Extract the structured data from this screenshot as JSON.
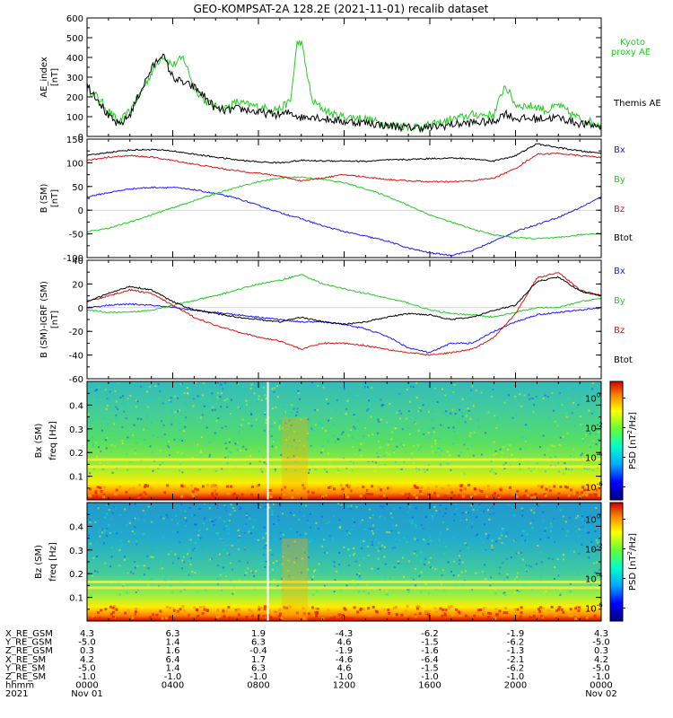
{
  "title": "GEO-KOMPSAT-2A 128.2E (2021-11-01) recalib dataset",
  "chart_data": [
    {
      "type": "line",
      "ylabel": "AE_index [nT]",
      "ylim": [
        0,
        600
      ],
      "yticks": [
        0,
        100,
        200,
        300,
        400,
        500,
        600
      ],
      "series": [
        {
          "name": "Kyoto proxy AE",
          "color": "#22cc22",
          "x": [
            0,
            0.5,
            1,
            1.5,
            2,
            2.5,
            3,
            3.5,
            4,
            4.5,
            5,
            5.5,
            6,
            6.5,
            7,
            7.5,
            8,
            8.5,
            9,
            9.5,
            9.8,
            10,
            10.5,
            11,
            11.5,
            12,
            13,
            14,
            15,
            16,
            17,
            18,
            18.5,
            19,
            19.5,
            20,
            21,
            21.5,
            22,
            22.5,
            23,
            24
          ],
          "values": [
            240,
            200,
            130,
            70,
            130,
            220,
            320,
            410,
            360,
            400,
            250,
            180,
            150,
            145,
            175,
            160,
            150,
            140,
            140,
            180,
            470,
            480,
            180,
            140,
            110,
            100,
            90,
            60,
            50,
            55,
            85,
            110,
            110,
            110,
            260,
            160,
            150,
            130,
            160,
            120,
            90,
            60
          ]
        },
        {
          "name": "Themis AE",
          "color": "#000000",
          "x": [
            0,
            0.5,
            1,
            1.5,
            2,
            2.5,
            3,
            3.5,
            4,
            4.5,
            5,
            5.5,
            6,
            6.5,
            7,
            7.5,
            8,
            8.5,
            9,
            9.5,
            10,
            10.5,
            11,
            12,
            13,
            14,
            15,
            16,
            17,
            18,
            19,
            19.5,
            20,
            21,
            22,
            23,
            24
          ],
          "values": [
            260,
            190,
            100,
            55,
            110,
            230,
            340,
            420,
            300,
            270,
            250,
            200,
            140,
            130,
            140,
            135,
            120,
            115,
            110,
            120,
            95,
            105,
            90,
            75,
            70,
            55,
            45,
            45,
            60,
            70,
            75,
            120,
            90,
            90,
            95,
            65,
            50
          ]
        }
      ]
    },
    {
      "type": "line",
      "ylabel": "B (SM) [nT]",
      "ylim": [
        -100,
        150
      ],
      "yticks": [
        -100,
        -50,
        0,
        50,
        100,
        150
      ],
      "series": [
        {
          "name": "Bx",
          "color": "#1a1aff",
          "x": [
            0,
            1,
            2,
            3,
            4,
            5,
            6,
            7,
            8,
            9,
            10,
            11,
            12,
            13,
            14,
            15,
            16,
            17,
            18,
            19,
            20,
            21,
            22,
            23,
            24
          ],
          "values": [
            28,
            37,
            45,
            48,
            48,
            43,
            35,
            25,
            10,
            -5,
            -18,
            -33,
            -45,
            -55,
            -65,
            -80,
            -90,
            -95,
            -85,
            -65,
            -45,
            -30,
            -15,
            5,
            28
          ]
        },
        {
          "name": "By",
          "color": "#22cc22",
          "x": [
            0,
            1,
            2,
            3,
            4,
            5,
            6,
            7,
            8,
            9,
            10,
            11,
            12,
            13,
            14,
            15,
            16,
            17,
            18,
            19,
            20,
            21,
            22,
            23,
            24
          ],
          "values": [
            -45,
            -38,
            -25,
            -10,
            5,
            20,
            35,
            48,
            60,
            68,
            70,
            65,
            58,
            45,
            30,
            10,
            -10,
            -25,
            -40,
            -52,
            -58,
            -60,
            -58,
            -52,
            -48
          ]
        },
        {
          "name": "Bz",
          "color": "#dd1111",
          "x": [
            0,
            1,
            2,
            3,
            4,
            5,
            6,
            7,
            8,
            9,
            10,
            11,
            12,
            13,
            14,
            15,
            16,
            17,
            18,
            19,
            20,
            21,
            22,
            23,
            24
          ],
          "values": [
            105,
            112,
            115,
            112,
            105,
            97,
            90,
            83,
            78,
            72,
            62,
            68,
            75,
            70,
            65,
            62,
            60,
            60,
            62,
            68,
            88,
            118,
            120,
            115,
            112
          ]
        },
        {
          "name": "Btot",
          "color": "#000000",
          "x": [
            0,
            1,
            2,
            3,
            4,
            5,
            6,
            7,
            8,
            9,
            10,
            11,
            12,
            13,
            14,
            15,
            16,
            17,
            18,
            19,
            20,
            21,
            22,
            23,
            24
          ],
          "values": [
            115,
            122,
            127,
            128,
            125,
            118,
            112,
            106,
            102,
            100,
            105,
            104,
            104,
            103,
            106,
            107,
            109,
            110,
            108,
            104,
            115,
            140,
            132,
            125,
            120
          ]
        }
      ]
    },
    {
      "type": "line",
      "ylabel": "B (SM)-IGRF (SM) [nT]",
      "ylim": [
        -60,
        40
      ],
      "yticks": [
        -60,
        -40,
        -20,
        0,
        20,
        40
      ],
      "series": [
        {
          "name": "Bx",
          "color": "#1a1aff",
          "x": [
            0,
            1,
            2,
            3,
            4,
            5,
            6,
            7,
            8,
            9,
            10,
            11,
            12,
            13,
            14,
            15,
            16,
            17,
            18,
            19,
            20,
            21,
            22,
            23,
            24
          ],
          "values": [
            0,
            2,
            3,
            2,
            0,
            -2,
            -4,
            -6,
            -8,
            -10,
            -12,
            -12,
            -14,
            -18,
            -24,
            -34,
            -38,
            -30,
            -30,
            -20,
            -12,
            -6,
            -4,
            -2,
            0
          ]
        },
        {
          "name": "By",
          "color": "#22cc22",
          "x": [
            0,
            1,
            2,
            3,
            4,
            5,
            6,
            7,
            8,
            9,
            10,
            11,
            12,
            13,
            14,
            15,
            16,
            17,
            18,
            19,
            20,
            21,
            22,
            23,
            24
          ],
          "values": [
            -2,
            -4,
            -4,
            -2,
            2,
            6,
            10,
            15,
            20,
            23,
            28,
            20,
            16,
            12,
            8,
            4,
            -2,
            -5,
            -6,
            -8,
            -4,
            0,
            0,
            5,
            8
          ]
        },
        {
          "name": "Bz",
          "color": "#dd1111",
          "x": [
            0,
            1,
            2,
            3,
            4,
            5,
            6,
            7,
            8,
            9,
            10,
            11,
            12,
            13,
            14,
            15,
            16,
            17,
            18,
            19,
            20,
            21,
            22,
            23,
            24
          ],
          "values": [
            5,
            10,
            15,
            12,
            2,
            -8,
            -15,
            -20,
            -25,
            -28,
            -35,
            -30,
            -30,
            -32,
            -35,
            -38,
            -40,
            -38,
            -35,
            -25,
            -5,
            25,
            30,
            15,
            10
          ]
        },
        {
          "name": "Btot",
          "color": "#000000",
          "x": [
            0,
            1,
            2,
            3,
            4,
            5,
            6,
            7,
            8,
            9,
            10,
            11,
            12,
            13,
            14,
            15,
            16,
            17,
            18,
            19,
            20,
            21,
            22,
            23,
            24
          ],
          "values": [
            5,
            12,
            18,
            15,
            5,
            -2,
            -5,
            -8,
            -10,
            -12,
            -8,
            -12,
            -14,
            -12,
            -8,
            -5,
            -6,
            -10,
            -8,
            -2,
            2,
            22,
            26,
            14,
            10
          ]
        }
      ]
    },
    {
      "type": "heatmap",
      "ylabel": "Bx (SM) freq [Hz]",
      "ylim": [
        0,
        0.5
      ],
      "yticks": [
        0.1,
        0.2,
        0.3,
        0.4
      ],
      "colorbar_label": "PSD [nT^2/Hz]",
      "colorbar_ticks": [
        "10^0",
        "10^-2",
        "10^-4",
        "10^-6"
      ],
      "bands_hz": [
        0.17,
        0.14
      ]
    },
    {
      "type": "heatmap",
      "ylabel": "Bz (SM) freq [Hz]",
      "ylim": [
        0,
        0.5
      ],
      "yticks": [
        0.1,
        0.2,
        0.3,
        0.4
      ],
      "colorbar_label": "PSD [nT^2/Hz]",
      "colorbar_ticks": [
        "10^0",
        "10^-2",
        "10^-4",
        "10^-6"
      ],
      "bands_hz": [
        0.165,
        0.14
      ]
    }
  ],
  "ae_labels": [
    {
      "text": "Kyoto",
      "color": "#22cc22"
    },
    {
      "text": "proxy AE",
      "color": "#22cc22"
    },
    {
      "text": "Themis AE",
      "color": "#000000"
    }
  ],
  "b_legend": [
    {
      "text": "Bx",
      "color": "#1a1aff"
    },
    {
      "text": "By",
      "color": "#22cc22"
    },
    {
      "text": "Bz",
      "color": "#dd1111"
    },
    {
      "text": "Btot",
      "color": "#000000"
    }
  ],
  "ephemeris": {
    "row_labels": [
      "X_RE_GSM",
      "Y_RE_GSM",
      "Z_RE_GSM",
      "X_RE_SM",
      "Y_RE_SM",
      "Z_RE_SM",
      "hhmm",
      "2021"
    ],
    "columns": [
      [
        "4.3",
        "-5.0",
        "0.3",
        "4.2",
        "-5.0",
        "-1.0",
        "0000",
        "Nov 01"
      ],
      [
        "6.3",
        "1.4",
        "1.6",
        "6.4",
        "1.4",
        "-1.0",
        "0400",
        ""
      ],
      [
        "1.9",
        "6.3",
        "-0.4",
        "1.7",
        "6.3",
        "-1.0",
        "0800",
        ""
      ],
      [
        "-4.3",
        "4.6",
        "-1.9",
        "-4.6",
        "4.6",
        "-1.0",
        "1200",
        ""
      ],
      [
        "-6.2",
        "-1.5",
        "-1.6",
        "-6.4",
        "-1.5",
        "-1.0",
        "1600",
        ""
      ],
      [
        "-1.9",
        "-6.2",
        "-1.3",
        "-2.1",
        "-6.2",
        "-1.0",
        "2000",
        ""
      ],
      [
        "4.3",
        "-5.0",
        "0.3",
        "4.2",
        "-5.0",
        "-1.0",
        "0000",
        "Nov 02"
      ]
    ]
  }
}
